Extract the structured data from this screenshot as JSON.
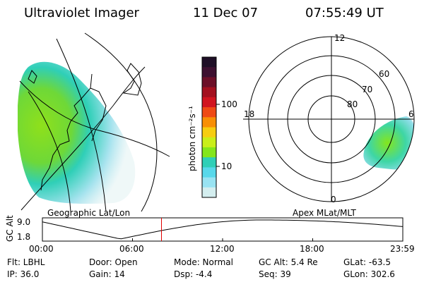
{
  "header": {
    "instrument": "Ultraviolet Imager",
    "date": "11 Dec 07",
    "time": "07:55:49 UT"
  },
  "left_panel": {
    "caption": "Geographic Lat/Lon"
  },
  "right_panel": {
    "caption": "Apex MLat/MLT",
    "mlt_labels": [
      "12",
      "18",
      "6",
      "0"
    ],
    "mlat_labels": [
      "60",
      "70",
      "80"
    ]
  },
  "colorbar": {
    "label": "photon cm⁻²s⁻¹",
    "tick_labels": [
      "100",
      "10"
    ],
    "colors": [
      "#1e0f26",
      "#3d1030",
      "#6c0f28",
      "#a3101f",
      "#d1141f",
      "#ef4a14",
      "#f88f05",
      "#f6cd11",
      "#c9ee1a",
      "#84e61c",
      "#2fcfb7",
      "#57d8ea",
      "#98e3f2",
      "#d4eeef"
    ]
  },
  "altitude_plot": {
    "ylabel": "GC Alt",
    "y_ticks": [
      "9.0",
      "1.8"
    ],
    "x_ticks": [
      "00:00",
      "06:00",
      "12:00",
      "18:00",
      "23:59"
    ],
    "current_time_hours": 7.93,
    "min_time_hours": 5.2,
    "max_time_hours": 14.6,
    "marker_color": "#e00000"
  },
  "info": {
    "flt": "Flt: LBHL",
    "ip": "IP: 36.0",
    "door": "Door: Open",
    "gain": "Gain: 14",
    "mode": "Mode: Normal",
    "dsp": "Dsp:   -4.4",
    "gc_alt": "GC Alt: 5.4 Re",
    "seq": "Seq: 39",
    "glat": "GLat: -63.5",
    "glon": "GLon: 302.6"
  }
}
